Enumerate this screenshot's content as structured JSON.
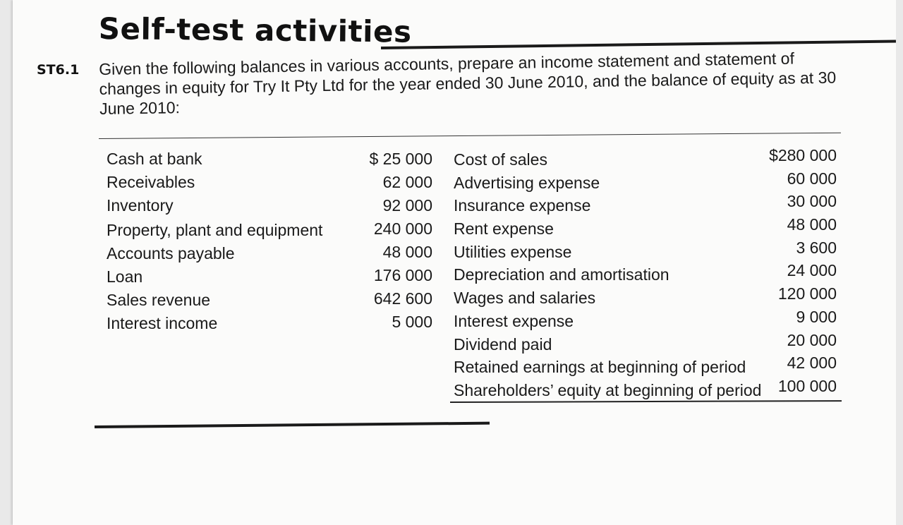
{
  "heading": "Self-test activities",
  "question": {
    "label": "ST6.1",
    "text": "Given the following balances in various accounts, prepare an income statement and statement of changes in equity for Try It Pty Ltd for the year ended 30 June 2010, and the balance of equity as at 30 June 2010:"
  },
  "left_items": [
    {
      "label": "Cash at bank",
      "value": "$ 25 000"
    },
    {
      "label": "Receivables",
      "value": "62 000"
    },
    {
      "label": "Inventory",
      "value": "92 000"
    },
    {
      "label": "Property, plant and equipment",
      "value": "240 000"
    },
    {
      "label": "Accounts payable",
      "value": "48 000"
    },
    {
      "label": "Loan",
      "value": "176 000"
    },
    {
      "label": "Sales revenue",
      "value": "642 600"
    },
    {
      "label": "Interest income",
      "value": "5 000"
    }
  ],
  "right_items": [
    {
      "label": "Cost of sales",
      "value": "$280 000"
    },
    {
      "label": "Advertising expense",
      "value": "60 000"
    },
    {
      "label": "Insurance expense",
      "value": "30 000"
    },
    {
      "label": "Rent expense",
      "value": "48 000"
    },
    {
      "label": "Utilities expense",
      "value": "3 600"
    },
    {
      "label": "Depreciation and amortisation",
      "value": "24 000"
    },
    {
      "label": "Wages and salaries",
      "value": "120 000"
    },
    {
      "label": "Interest expense",
      "value": "9 000"
    },
    {
      "label": "Dividend paid",
      "value": "20 000"
    },
    {
      "label": "Retained earnings at beginning of period",
      "value": "42 000"
    },
    {
      "label": "Shareholders’ equity at beginning of period",
      "value": "100 000"
    }
  ]
}
